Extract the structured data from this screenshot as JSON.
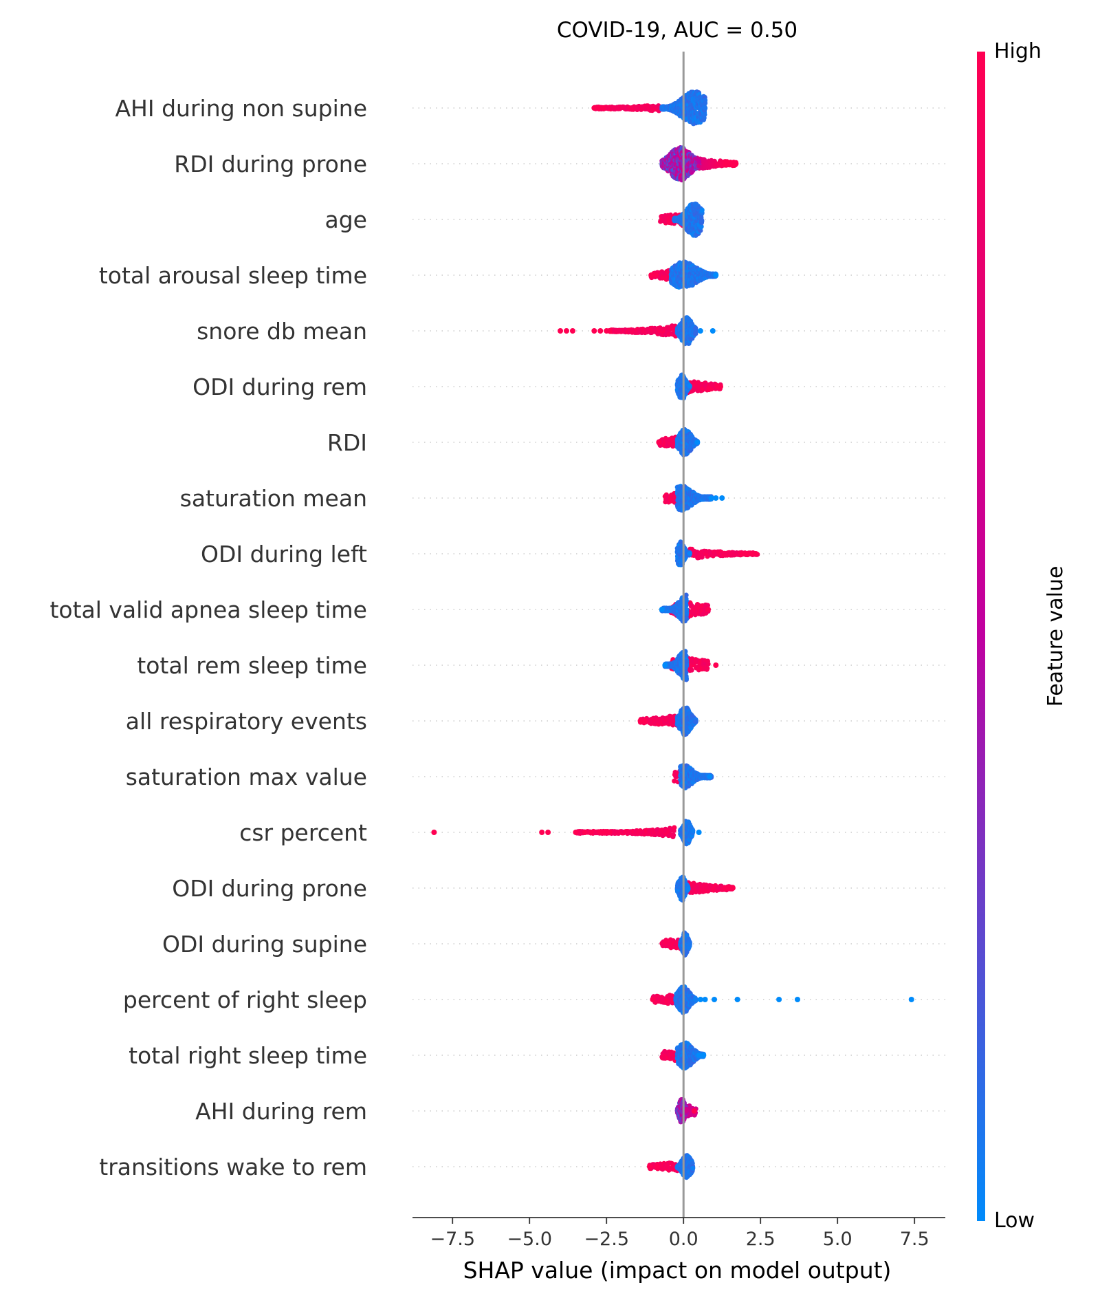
{
  "chart_data": {
    "type": "scatter",
    "subtype": "shap-summary-beeswarm",
    "title": "COVID-19, AUC =  0.50",
    "xlabel": "SHAP value (impact on model output)",
    "ylabel": "",
    "xlim": [
      -8.8,
      8.5
    ],
    "xticks": [
      {
        "value": -7.5,
        "label": "−7.5"
      },
      {
        "value": -5.0,
        "label": "−5.0"
      },
      {
        "value": -2.5,
        "label": "−2.5"
      },
      {
        "value": 0.0,
        "label": "0.0"
      },
      {
        "value": 2.5,
        "label": "2.5"
      },
      {
        "value": 5.0,
        "label": "5.0"
      },
      {
        "value": 7.5,
        "label": "7.5"
      }
    ],
    "grid": "horizontal dotted row guides",
    "zero_line": true,
    "colorbar": {
      "title": "Feature value",
      "high_label": "High",
      "low_label": "Low",
      "high_color": "#ff0052",
      "mid_color": "#c000a0",
      "low_color": "#008bfb"
    },
    "features": [
      {
        "name": "AHI during non supine",
        "high_min": -2.9,
        "high_max": -0.8,
        "body_min": -0.7,
        "body_max": 0.7,
        "peak": 0.35,
        "width": 1.0,
        "outliers_high": [
          -2.9,
          -2.75,
          -2.6
        ],
        "outliers_low": []
      },
      {
        "name": "RDI during prone",
        "high_min": 0.4,
        "high_max": 1.7,
        "body_min": -0.7,
        "body_max": 0.5,
        "peak": -0.1,
        "width": 1.0,
        "outliers_high": [
          1.6,
          1.7
        ],
        "outliers_low": [],
        "mixed": true
      },
      {
        "name": "age",
        "high_min": -0.75,
        "high_max": 0.0,
        "body_min": -0.3,
        "body_max": 0.6,
        "peak": 0.35,
        "width": 1.0,
        "outliers_high": [],
        "outliers_low": []
      },
      {
        "name": "total arousal sleep time",
        "high_min": -1.05,
        "high_max": -0.4,
        "body_min": -0.4,
        "body_max": 1.05,
        "peak": 0.0,
        "width": 0.8,
        "outliers_high": [
          -1.05,
          -0.9
        ],
        "outliers_low": [
          1.05
        ]
      },
      {
        "name": "snore db mean",
        "high_min": -2.4,
        "high_max": -0.2,
        "body_min": -0.2,
        "body_max": 0.4,
        "peak": 0.1,
        "width": 0.85,
        "outliers_high": [
          -4.0,
          -3.8,
          -3.6,
          -2.9,
          -2.7,
          -2.5,
          -2.4
        ],
        "outliers_low": [
          0.55,
          0.95
        ]
      },
      {
        "name": "ODI during rem",
        "high_min": 0.1,
        "high_max": 1.2,
        "body_min": -0.2,
        "body_max": 0.2,
        "peak": -0.05,
        "width": 0.8,
        "outliers_high": [
          1.1,
          1.2
        ],
        "outliers_low": []
      },
      {
        "name": "RDI",
        "high_min": -0.8,
        "high_max": -0.2,
        "body_min": -0.2,
        "body_max": 0.45,
        "peak": 0.05,
        "width": 0.8,
        "outliers_high": [
          -0.8
        ],
        "outliers_low": [
          0.45
        ]
      },
      {
        "name": "saturation mean",
        "high_min": -0.6,
        "high_max": -0.1,
        "body_min": -0.2,
        "body_max": 0.9,
        "peak": -0.05,
        "width": 0.75,
        "outliers_high": [],
        "outliers_low": [
          0.9,
          1.05,
          1.25
        ]
      },
      {
        "name": "ODI during left",
        "high_min": 0.2,
        "high_max": 2.4,
        "body_min": -0.2,
        "body_max": 0.2,
        "peak": -0.1,
        "width": 0.75,
        "outliers_high": [
          1.9,
          2.05,
          2.2,
          2.35
        ],
        "outliers_low": []
      },
      {
        "name": "total valid apnea sleep time",
        "high_min": -0.4,
        "high_max": 0.8,
        "body_min": -0.7,
        "body_max": 0.1,
        "peak": 0.1,
        "width": 0.9,
        "outliers_high": [
          0.8
        ],
        "outliers_low": [
          -0.7
        ]
      },
      {
        "name": "total rem sleep time",
        "high_min": -0.4,
        "high_max": 0.8,
        "body_min": -0.6,
        "body_max": 0.1,
        "peak": 0.05,
        "width": 0.9,
        "outliers_high": [
          1.05
        ],
        "outliers_low": [
          -0.6
        ]
      },
      {
        "name": "all respiratory events",
        "high_min": -1.4,
        "high_max": -0.2,
        "body_min": -0.2,
        "body_max": 0.4,
        "peak": 0.05,
        "width": 0.85,
        "outliers_high": [
          -1.4,
          -1.25
        ],
        "outliers_low": []
      },
      {
        "name": "saturation max value",
        "high_min": -0.3,
        "high_max": 0.0,
        "body_min": -0.1,
        "body_max": 0.9,
        "peak": 0.0,
        "width": 0.7,
        "outliers_high": [],
        "outliers_low": [
          0.85
        ]
      },
      {
        "name": "csr percent",
        "high_min": -3.5,
        "high_max": -0.3,
        "body_min": -0.1,
        "body_max": 0.3,
        "peak": 0.1,
        "width": 0.75,
        "outliers_high": [
          -8.1,
          -4.6,
          -4.4,
          -3.5,
          -3.2,
          -3.0,
          -2.7,
          -2.55,
          -2.4
        ],
        "outliers_low": [
          0.5
        ]
      },
      {
        "name": "ODI during prone",
        "high_min": 0.1,
        "high_max": 1.6,
        "body_min": -0.2,
        "body_max": 0.15,
        "peak": -0.05,
        "width": 0.75,
        "outliers_high": [
          1.35,
          1.5,
          1.6
        ],
        "outliers_low": []
      },
      {
        "name": "ODI during supine",
        "high_min": -0.7,
        "high_max": -0.1,
        "body_min": -0.1,
        "body_max": 0.2,
        "peak": 0.05,
        "width": 0.7,
        "outliers_high": [],
        "outliers_low": []
      },
      {
        "name": "percent of right sleep",
        "high_min": -1.0,
        "high_max": -0.2,
        "body_min": -0.25,
        "body_max": 0.4,
        "peak": 0.0,
        "width": 0.8,
        "outliers_high": [
          -1.0
        ],
        "outliers_low": [
          0.55,
          0.7,
          1.0,
          1.75,
          3.1,
          3.7,
          7.4
        ]
      },
      {
        "name": "total right sleep time",
        "high_min": -0.7,
        "high_max": -0.1,
        "body_min": -0.2,
        "body_max": 0.65,
        "peak": 0.05,
        "width": 0.8,
        "outliers_high": [],
        "outliers_low": [
          0.5,
          0.65
        ]
      },
      {
        "name": "AHI during rem",
        "high_min": 0.0,
        "high_max": 0.4,
        "body_min": -0.2,
        "body_max": 0.1,
        "peak": -0.05,
        "width": 0.75,
        "outliers_high": [
          0.35
        ],
        "outliers_low": [],
        "mixed": true
      },
      {
        "name": "transitions wake to rem",
        "high_min": -1.1,
        "high_max": -0.2,
        "body_min": -0.2,
        "body_max": 0.3,
        "peak": 0.1,
        "width": 0.7,
        "outliers_high": [
          -1.1,
          -0.85
        ],
        "outliers_low": []
      }
    ]
  }
}
